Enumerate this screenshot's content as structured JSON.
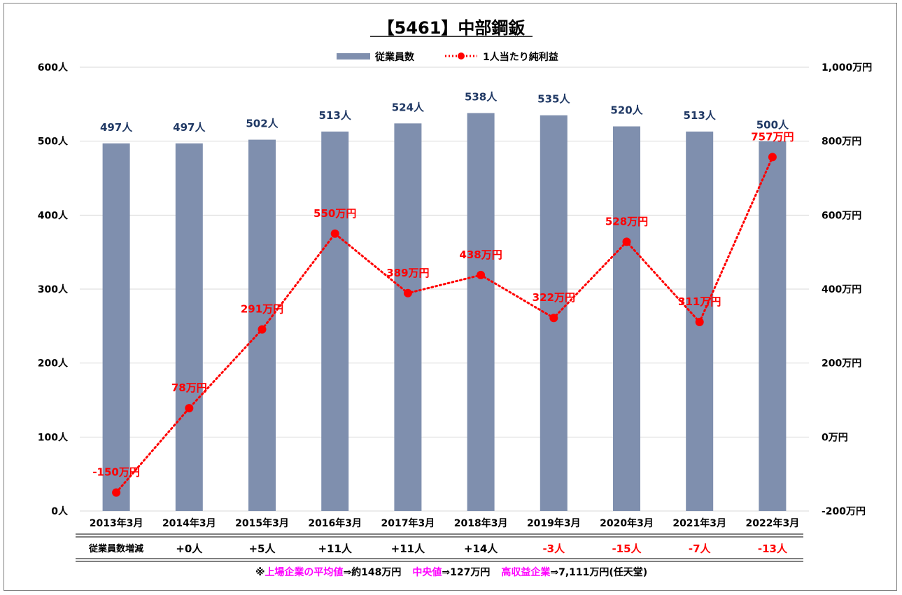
{
  "title": "【5461】中部鋼鈑",
  "legend": {
    "bar": "従業員数",
    "line": "1人当たり純利益"
  },
  "colors": {
    "bar": "#7f8fae",
    "line": "#ff0000",
    "barLabel": "#1f3864",
    "negative": "#ff0000",
    "highlight": "#ff00ff"
  },
  "chart_data": {
    "type": "bar",
    "categories": [
      "2013年3月",
      "2014年3月",
      "2015年3月",
      "2016年3月",
      "2017年3月",
      "2018年3月",
      "2019年3月",
      "2020年3月",
      "2021年3月",
      "2022年3月"
    ],
    "series": [
      {
        "name": "従業員数",
        "type": "bar",
        "axis": "left",
        "values": [
          497,
          497,
          502,
          513,
          524,
          538,
          535,
          520,
          513,
          500
        ],
        "labels": [
          "497人",
          "497人",
          "502人",
          "513人",
          "524人",
          "538人",
          "535人",
          "520人",
          "513人",
          "500人"
        ]
      },
      {
        "name": "1人当たり純利益",
        "type": "line",
        "axis": "right",
        "values": [
          -150,
          78,
          291,
          550,
          389,
          438,
          322,
          528,
          311,
          757
        ],
        "labels": [
          "-150万円",
          "78万円",
          "291万円",
          "550万円",
          "389万円",
          "438万円",
          "322万円",
          "528万円",
          "311万円",
          "757万円"
        ]
      }
    ],
    "yLeft": {
      "range": [
        0,
        600
      ],
      "ticks": [
        0,
        100,
        200,
        300,
        400,
        500,
        600
      ],
      "tickLabels": [
        "0人",
        "100人",
        "200人",
        "300人",
        "400人",
        "500人",
        "600人"
      ]
    },
    "yRight": {
      "range": [
        -200,
        1000
      ],
      "ticks": [
        -200,
        0,
        200,
        400,
        600,
        800,
        1000
      ],
      "tickLabels": [
        "-200万円",
        "0万円",
        "200万円",
        "400万円",
        "600万円",
        "800万円",
        "1,000万円"
      ]
    },
    "grid": true,
    "legendPosition": "top-center"
  },
  "table": {
    "rowLabel": "従業員数増減",
    "values": [
      "+0人",
      "+5人",
      "+11人",
      "+11人",
      "+14人",
      "-3人",
      "-15人",
      "-7人",
      "-13人"
    ],
    "negative": [
      false,
      false,
      false,
      false,
      false,
      true,
      true,
      true,
      true
    ]
  },
  "footnote": {
    "prefix": "※",
    "label1": "上場企業の平均値",
    "value1": "⇒約148万円",
    "label2": "中央値",
    "value2": "⇒127万円",
    "label3": "高収益企業",
    "value3": "⇒7,111万円(任天堂)"
  }
}
